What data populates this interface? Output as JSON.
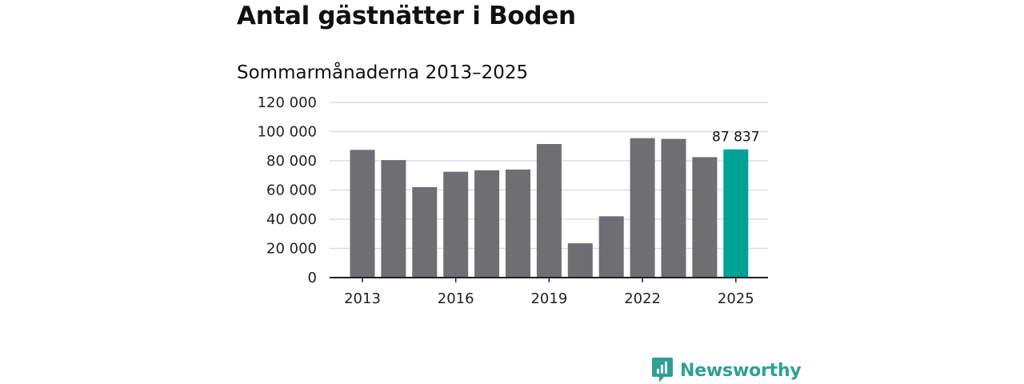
{
  "chart_data": {
    "type": "bar",
    "title": "Antal gästnätter i Boden",
    "subtitle": "Sommarmånaderna 2013–2025",
    "categories": [
      "2013",
      "2014",
      "2015",
      "2016",
      "2017",
      "2018",
      "2019",
      "2020",
      "2021",
      "2022",
      "2023",
      "2024",
      "2025"
    ],
    "values": [
      87500,
      80500,
      62000,
      72500,
      73500,
      74000,
      91500,
      23500,
      42000,
      95500,
      95000,
      82500,
      87837
    ],
    "x_tick_labels": [
      "2013",
      "2016",
      "2019",
      "2022",
      "2025"
    ],
    "y_tick_labels": [
      "120 000",
      "100 000",
      "80 000",
      "60 000",
      "40 000",
      "20 000",
      "0"
    ],
    "ylim": [
      0,
      120000
    ],
    "y_ticks": [
      0,
      20000,
      40000,
      60000,
      80000,
      100000,
      120000
    ],
    "xlabel": "",
    "ylabel": "",
    "grid": true,
    "annotations": [
      {
        "category": "2025",
        "label": "87 837"
      }
    ],
    "colors": {
      "bar": "#6e6e73",
      "highlight": "#00a296",
      "grid": "#dddddd",
      "axis": "#222222"
    }
  },
  "brand": {
    "name": "Newsworthy",
    "color": "#2fa096"
  }
}
